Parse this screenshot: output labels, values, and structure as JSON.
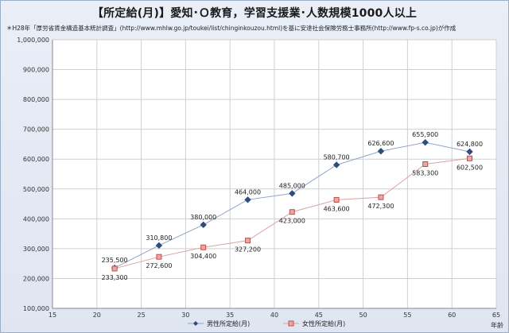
{
  "chart_data": {
    "type": "line",
    "title": "【所定給(月)】愛知･Ｏ教育，学習支援業･人数規模1000人以上",
    "subtitle": "＊H28年「厚労省賃金構造基本統計調査」(http://www.mhlw.go.jp/toukei/list/chinginkouzou.html)を基に安達社会保険労務士事務所(http://www.fp-s.co.jp)が作成",
    "xlabel": "年齢",
    "ylabel": "",
    "xlim": [
      15,
      65
    ],
    "ylim": [
      100000,
      1000000
    ],
    "xticks": [
      15,
      20,
      25,
      30,
      35,
      40,
      45,
      50,
      55,
      60,
      65
    ],
    "yticks": [
      100000,
      200000,
      300000,
      400000,
      500000,
      600000,
      700000,
      800000,
      900000,
      1000000
    ],
    "xtick_labels": [
      "15",
      "20",
      "25",
      "30",
      "35",
      "40",
      "45",
      "50",
      "55",
      "60",
      "65"
    ],
    "ytick_labels": [
      "100,000",
      "200,000",
      "300,000",
      "400,000",
      "500,000",
      "600,000",
      "700,000",
      "800,000",
      "900,000",
      "1,000,000"
    ],
    "grid": true,
    "legend_position": "bottom",
    "x": [
      22,
      27,
      32,
      37,
      42,
      47,
      52,
      57,
      62
    ],
    "series": [
      {
        "name": "男性所定給(月)",
        "color": "#2e4d7b",
        "marker": "diamond",
        "values": [
          235500,
          310800,
          380000,
          464000,
          485000,
          580700,
          626600,
          655900,
          624800
        ],
        "labels": [
          "235,500",
          "310,800",
          "380,000",
          "464,000",
          "485,000",
          "580,700",
          "626,600",
          "655,900",
          "624,800"
        ]
      },
      {
        "name": "女性所定給(月)",
        "color": "#c0504d",
        "marker": "square",
        "values": [
          233300,
          272600,
          304400,
          327200,
          423000,
          463600,
          472300,
          583300,
          602500
        ],
        "labels": [
          "233,300",
          "272,600",
          "304,400",
          "327,200",
          "423,000",
          "463,600",
          "472,300",
          "583,300",
          "602,500"
        ]
      }
    ]
  }
}
